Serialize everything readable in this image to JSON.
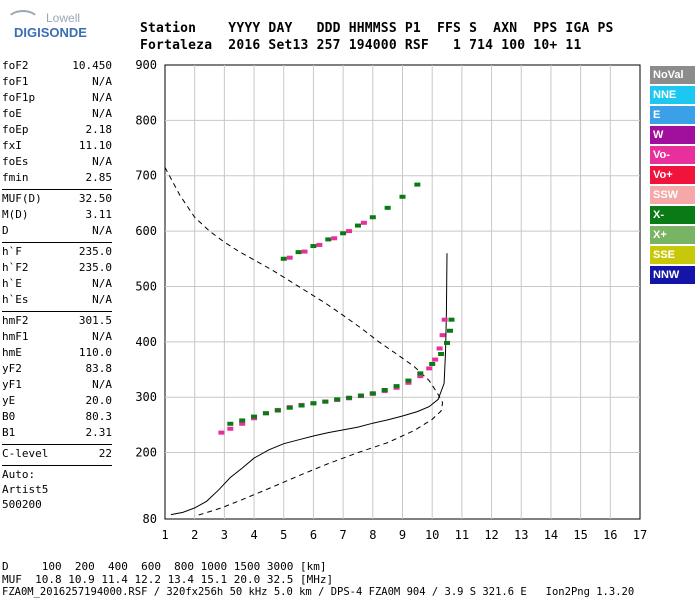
{
  "logo": {
    "line1": "Lowell",
    "line2": "DIGISONDE"
  },
  "header": {
    "row1": "Station    YYYY DAY   DDD HHMMSS P1  FFS S  AXN  PPS IGA PS",
    "row2": "Fortaleza  2016 Set13 257 194000 RSF   1 714 100 10+ 11"
  },
  "params": [
    {
      "label": "foF2",
      "value": "10.450"
    },
    {
      "label": "foF1",
      "value": "N/A"
    },
    {
      "label": "foF1p",
      "value": "N/A"
    },
    {
      "label": "foE",
      "value": "N/A"
    },
    {
      "label": "foEp",
      "value": "2.18"
    },
    {
      "label": "fxI",
      "value": "11.10"
    },
    {
      "label": "foEs",
      "value": "N/A"
    },
    {
      "label": "fmin",
      "value": "2.85"
    },
    {
      "sep": true
    },
    {
      "label": "MUF(D)",
      "value": "32.50"
    },
    {
      "label": "M(D)",
      "value": "3.11"
    },
    {
      "label": "D",
      "value": "N/A"
    },
    {
      "sep": true
    },
    {
      "label": "h`F",
      "value": "235.0"
    },
    {
      "label": "h`F2",
      "value": "235.0"
    },
    {
      "label": "h`E",
      "value": "N/A"
    },
    {
      "label": "h`Es",
      "value": "N/A"
    },
    {
      "sep": true
    },
    {
      "label": "hmF2",
      "value": "301.5"
    },
    {
      "label": "hmF1",
      "value": "N/A"
    },
    {
      "label": "hmE",
      "value": "110.0"
    },
    {
      "label": "yF2",
      "value": "83.8"
    },
    {
      "label": "yF1",
      "value": "N/A"
    },
    {
      "label": "yE",
      "value": "20.0"
    },
    {
      "label": "B0",
      "value": "80.3"
    },
    {
      "label": "B1",
      "value": "2.31"
    },
    {
      "sep": true
    },
    {
      "label": "C-level",
      "value": "22"
    },
    {
      "sep": true
    },
    {
      "text": "Auto:"
    },
    {
      "text": "Artist5"
    },
    {
      "text": "500200"
    }
  ],
  "legend": [
    {
      "label": "NoVal",
      "color": "#8c8c8c"
    },
    {
      "label": "NNE",
      "color": "#1cc8f0"
    },
    {
      "label": "E",
      "color": "#3aa0e8"
    },
    {
      "label": "W",
      "color": "#a0109c"
    },
    {
      "label": "Vo-",
      "color": "#e8309c"
    },
    {
      "label": "Vo+",
      "color": "#f0143c"
    },
    {
      "label": "SSW",
      "color": "#f4a8a8"
    },
    {
      "label": "X-",
      "color": "#0a7a14"
    },
    {
      "label": "X+",
      "color": "#78b464"
    },
    {
      "label": "SSE",
      "color": "#c8c80a"
    },
    {
      "label": "NNW",
      "color": "#1414a8"
    }
  ],
  "footer": {
    "line1": "D     100  200  400  600  800 1000 1500 3000 [km]",
    "line2": "MUF  10.8 10.9 11.4 12.2 13.4 15.1 20.0 32.5 [MHz]",
    "line3": "FZA0M_2016257194000.RSF / 320fx256h 50 kHz 5.0 km / DPS-4 FZA0M 904 / 3.9 S 321.6 E   Ion2Png 1.3.20"
  },
  "chart_data": {
    "type": "scatter",
    "x_ticks": [
      1,
      2,
      3,
      4,
      5,
      6,
      7,
      8,
      9,
      10,
      11,
      12,
      13,
      14,
      15,
      16,
      17
    ],
    "y_ticks": [
      80,
      200,
      300,
      400,
      500,
      600,
      700,
      800,
      900
    ],
    "xlim": [
      1,
      17
    ],
    "ylim": [
      80,
      900
    ],
    "grid": true,
    "series": [
      {
        "name": "Vo-",
        "color": "#e8309c",
        "x": [
          2.9,
          3.2,
          3.6,
          4.0,
          4.4,
          4.8,
          5.2,
          5.6,
          6.0,
          6.4,
          6.8,
          7.2,
          7.6,
          8.0,
          8.4,
          8.8,
          9.2,
          9.6,
          9.9,
          10.1,
          10.25,
          10.35,
          10.42
        ],
        "y": [
          236,
          243,
          252,
          262,
          271,
          277,
          282,
          286,
          289,
          292,
          295,
          298,
          302,
          306,
          311,
          317,
          326,
          338,
          352,
          368,
          388,
          412,
          440
        ]
      },
      {
        "name": "X-",
        "color": "#0a7a14",
        "x": [
          3.2,
          3.6,
          4.0,
          4.4,
          4.8,
          5.2,
          5.6,
          6.0,
          6.4,
          6.8,
          7.2,
          7.6,
          8.0,
          8.4,
          8.8,
          9.2,
          9.6,
          10.0,
          10.3,
          10.5,
          10.6,
          10.65
        ],
        "y": [
          252,
          258,
          265,
          271,
          276,
          281,
          285,
          289,
          292,
          296,
          299,
          303,
          307,
          313,
          320,
          330,
          343,
          360,
          378,
          398,
          420,
          440
        ]
      },
      {
        "name": "X- multiple",
        "color": "#0a7a14",
        "x": [
          5.0,
          5.5,
          6.0,
          6.5,
          7.0,
          7.5,
          8.0,
          8.5,
          9.0,
          9.5
        ],
        "y": [
          550,
          562,
          573,
          585,
          596,
          610,
          625,
          642,
          662,
          684
        ]
      },
      {
        "name": "Vo- multiple",
        "color": "#e8309c",
        "x": [
          5.2,
          5.7,
          6.2,
          6.7,
          7.2,
          7.7
        ],
        "y": [
          552,
          563,
          575,
          587,
          600,
          615
        ]
      }
    ],
    "lines": [
      {
        "name": "true-height profile",
        "style": "solid",
        "x": [
          1.2,
          1.6,
          2.0,
          2.4,
          2.8,
          3.2,
          3.6,
          4.0,
          4.5,
          5.0,
          5.5,
          6.0,
          6.5,
          7.0,
          7.5,
          8.0,
          8.5,
          9.0,
          9.5,
          9.9,
          10.2,
          10.4,
          10.45,
          10.48,
          10.5
        ],
        "y": [
          88,
          92,
          100,
          112,
          132,
          155,
          172,
          190,
          205,
          216,
          223,
          230,
          236,
          241,
          246,
          253,
          259,
          266,
          274,
          283,
          296,
          325,
          380,
          450,
          560
        ]
      },
      {
        "name": "model profile",
        "style": "dashed",
        "x": [
          1.0,
          1.5,
          2.0,
          2.5,
          3.0,
          3.5,
          4.0,
          4.6,
          5.2,
          5.8,
          6.4,
          7.0,
          7.6,
          8.2,
          8.8,
          9.4,
          9.9,
          10.2,
          10.35,
          10.3,
          10.0,
          9.4,
          8.5,
          7.5,
          6.5,
          5.5,
          4.5,
          3.6,
          2.9,
          2.3,
          2.0
        ],
        "y": [
          715,
          665,
          625,
          600,
          580,
          563,
          548,
          530,
          510,
          490,
          470,
          448,
          425,
          400,
          378,
          355,
          330,
          305,
          290,
          275,
          260,
          240,
          218,
          200,
          180,
          158,
          135,
          115,
          100,
          90,
          85
        ]
      }
    ]
  }
}
